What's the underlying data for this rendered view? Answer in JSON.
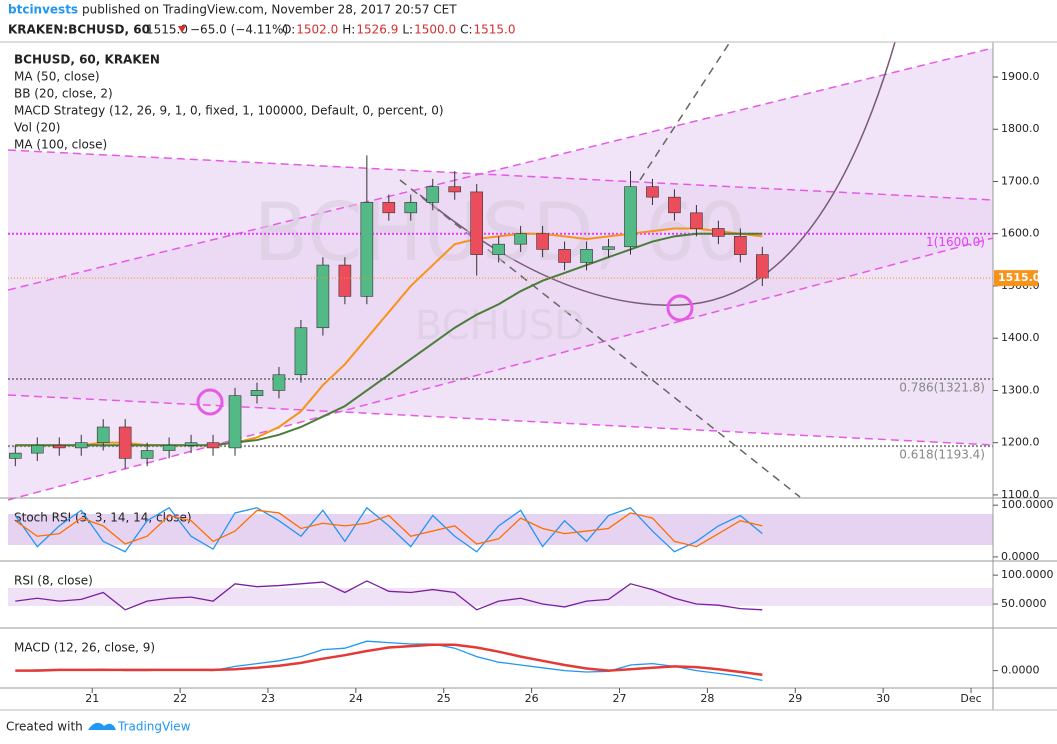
{
  "header": {
    "author": "btcinvests",
    "published": "published on TradingView.com, November 28, 2017 20:57 CET",
    "symbol": "KRAKEN:BCHUSD, 60",
    "price": "1515.0",
    "change": "−65.0 (−4.11%)",
    "ohlc": [
      {
        "label": "O:",
        "value": "1502.0"
      },
      {
        "label": "H:",
        "value": "1526.9"
      },
      {
        "label": "L:",
        "value": "1500.0"
      },
      {
        "label": "C:",
        "value": "1515.0"
      }
    ]
  },
  "legend": [
    "BCHUSD, 60, KRAKEN",
    "MA (50, close)",
    "BB (20, close, 2)",
    "MACD Strategy (12, 26, 9, 1, 0, fixed, 1, 100000, Default, 0, percent, 0)",
    "Vol (20)",
    "MA (100, close)"
  ],
  "watermark": [
    "BCHUSD, 60",
    "BCHUSD"
  ],
  "footer": {
    "created": "Created with",
    "brand": "TradingView"
  },
  "chart_data": {
    "type": "candlestick",
    "x": [
      3,
      9,
      15,
      21,
      27,
      33,
      39,
      45,
      51,
      57,
      63,
      69,
      75,
      81,
      87,
      93,
      99,
      105,
      111,
      117,
      123,
      129,
      135,
      141,
      147,
      153,
      159,
      165,
      171,
      177,
      183,
      189,
      195,
      201,
      207
    ],
    "open": [
      1170,
      1180,
      1195,
      1190,
      1200,
      1230,
      1170,
      1185,
      1195,
      1200,
      1190,
      1290,
      1300,
      1330,
      1420,
      1540,
      1480,
      1660,
      1640,
      1660,
      1690,
      1680,
      1560,
      1580,
      1600,
      1570,
      1545,
      1570,
      1575,
      1690,
      1670,
      1640,
      1610,
      1595,
      1560
    ],
    "high": [
      1195,
      1210,
      1210,
      1215,
      1245,
      1245,
      1200,
      1210,
      1215,
      1215,
      1305,
      1315,
      1345,
      1435,
      1555,
      1555,
      1750,
      1675,
      1675,
      1705,
      1720,
      1695,
      1595,
      1615,
      1615,
      1585,
      1585,
      1590,
      1720,
      1705,
      1685,
      1655,
      1625,
      1610,
      1575
    ],
    "low": [
      1155,
      1165,
      1175,
      1175,
      1185,
      1150,
      1155,
      1170,
      1180,
      1175,
      1175,
      1275,
      1285,
      1315,
      1405,
      1465,
      1465,
      1625,
      1625,
      1645,
      1665,
      1520,
      1545,
      1565,
      1555,
      1530,
      1530,
      1555,
      1560,
      1655,
      1625,
      1595,
      1580,
      1545,
      1500
    ],
    "close": [
      1180,
      1195,
      1190,
      1200,
      1230,
      1170,
      1185,
      1195,
      1200,
      1190,
      1290,
      1300,
      1330,
      1420,
      1540,
      1480,
      1660,
      1640,
      1660,
      1690,
      1680,
      1560,
      1580,
      1600,
      1570,
      1545,
      1570,
      1575,
      1690,
      1670,
      1640,
      1610,
      1595,
      1560,
      1515
    ],
    "up_color": "#53b987",
    "down_color": "#eb4d5c",
    "series": [
      {
        "name": "MA (50, close)",
        "color": "#f7931a",
        "values": [
          1195,
          1195,
          1195,
          1195,
          1200,
          1200,
          1195,
          1195,
          1195,
          1195,
          1200,
          1210,
          1230,
          1260,
          1310,
          1350,
          1400,
          1450,
          1500,
          1540,
          1580,
          1590,
          1595,
          1600,
          1600,
          1595,
          1590,
          1595,
          1600,
          1605,
          1610,
          1610,
          1605,
          1600,
          1595
        ]
      },
      {
        "name": "MA (100, close)",
        "color": "#4b7d3a",
        "values": [
          1195,
          1195,
          1195,
          1195,
          1195,
          1195,
          1195,
          1195,
          1195,
          1195,
          1200,
          1205,
          1215,
          1230,
          1250,
          1270,
          1300,
          1330,
          1360,
          1390,
          1420,
          1445,
          1465,
          1490,
          1510,
          1525,
          1540,
          1555,
          1570,
          1585,
          1595,
          1600,
          1600,
          1600,
          1600
        ]
      }
    ],
    "xlim": [
      1,
      270
    ],
    "xticks": [
      {
        "value": 24,
        "label": "21"
      },
      {
        "value": 48,
        "label": "22"
      },
      {
        "value": 72,
        "label": "23"
      },
      {
        "value": 96,
        "label": "24"
      },
      {
        "value": 120,
        "label": "25"
      },
      {
        "value": 144,
        "label": "26"
      },
      {
        "value": 168,
        "label": "27"
      },
      {
        "value": 192,
        "label": "28"
      },
      {
        "value": 216,
        "label": "29"
      },
      {
        "value": 240,
        "label": "30"
      },
      {
        "value": 264,
        "label": "Dec"
      }
    ],
    "ylim": [
      1096,
      1967
    ],
    "yticks": [
      {
        "value": 1100,
        "label": "1100.0"
      },
      {
        "value": 1200,
        "label": "1200.0"
      },
      {
        "value": 1300,
        "label": "1300.0"
      },
      {
        "value": 1400,
        "label": "1400.0"
      },
      {
        "value": 1500,
        "label": "1500.0"
      },
      {
        "value": 1600,
        "label": "1600.0"
      },
      {
        "value": 1700,
        "label": "1700.0"
      },
      {
        "value": 1800,
        "label": "1800.0"
      },
      {
        "value": 1900,
        "label": "1900.0"
      }
    ],
    "last_color": "#f7931a",
    "fib_levels": [
      {
        "value": 1600,
        "label": "1(1600.0)",
        "color": "#e040fb"
      },
      {
        "value": 1321.8,
        "label": "0.786(1321.8)",
        "color": "#888888"
      },
      {
        "value": 1193.4,
        "label": "0.618(1193.4)",
        "color": "#888888"
      }
    ],
    "panels": [
      {
        "title": "Stoch RSI (3, 3, 14, 14, close)",
        "ylim": [
          -4,
          110
        ],
        "yticks": [
          {
            "value": 0,
            "label": "0.0000"
          },
          {
            "value": 100,
            "label": "100.0000"
          }
        ],
        "series": [
          {
            "color": "#2196f3",
            "values": [
              80,
              20,
              60,
              90,
              30,
              10,
              70,
              95,
              40,
              15,
              85,
              95,
              70,
              40,
              90,
              30,
              95,
              60,
              20,
              80,
              40,
              10,
              60,
              90,
              20,
              70,
              30,
              80,
              95,
              50,
              10,
              30,
              60,
              80,
              45
            ]
          },
          {
            "color": "#ff6d00",
            "values": [
              70,
              40,
              45,
              75,
              60,
              25,
              40,
              80,
              70,
              30,
              50,
              90,
              85,
              55,
              65,
              60,
              65,
              80,
              40,
              50,
              60,
              25,
              35,
              75,
              55,
              45,
              50,
              55,
              85,
              75,
              30,
              20,
              45,
              70,
              60
            ]
          }
        ]
      },
      {
        "title": "RSI (8, close)",
        "ylim": [
          12,
          121
        ],
        "yticks": [
          {
            "value": 50,
            "label": "50.0000"
          },
          {
            "value": 100,
            "label": "100.0000"
          }
        ],
        "series": [
          {
            "color": "#7b1fa2",
            "values": [
              55,
              60,
              55,
              58,
              70,
              40,
              55,
              60,
              62,
              55,
              85,
              80,
              82,
              85,
              88,
              70,
              90,
              72,
              70,
              75,
              70,
              40,
              55,
              60,
              50,
              45,
              55,
              58,
              85,
              75,
              60,
              50,
              48,
              42,
              40
            ]
          }
        ]
      },
      {
        "title": "MACD (12, 26, close, 9)",
        "ylim": [
          -22,
          58
        ],
        "yticks": [
          {
            "value": 0,
            "label": "0.0000"
          }
        ],
        "series": [
          {
            "color": "#2196f3",
            "values": [
              0,
              1,
              1,
              1,
              2,
              0,
              0,
              1,
              1,
              0,
              6,
              10,
              14,
              20,
              30,
              32,
              42,
              40,
              38,
              38,
              32,
              20,
              12,
              8,
              4,
              0,
              -2,
              -1,
              8,
              10,
              6,
              0,
              -4,
              -8,
              -14
            ]
          },
          {
            "color": "#e53935",
            "values": [
              0,
              0,
              1,
              1,
              1,
              1,
              1,
              1,
              1,
              1,
              2,
              4,
              7,
              11,
              17,
              22,
              28,
              33,
              35,
              37,
              37,
              33,
              27,
              20,
              14,
              8,
              3,
              0,
              2,
              4,
              6,
              5,
              2,
              -2,
              -6
            ]
          }
        ]
      }
    ]
  }
}
